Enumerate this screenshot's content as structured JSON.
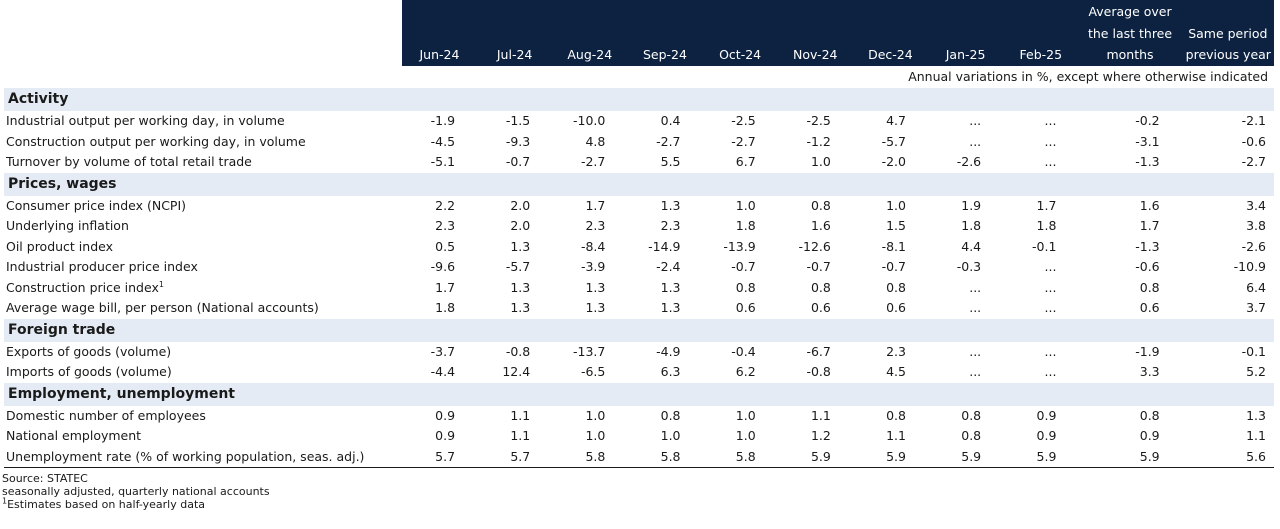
{
  "header": {
    "months": [
      "Jun-24",
      "Jul-24",
      "Aug-24",
      "Sep-24",
      "Oct-24",
      "Nov-24",
      "Dec-24",
      "Jan-25",
      "Feb-25"
    ],
    "avg_line1": "Average over",
    "avg_line2": "the last three",
    "avg_line3": "months",
    "same_line2": "Same period",
    "same_line3": "previous year"
  },
  "note": "Annual variations in %, except where otherwise indicated",
  "sections": [
    {
      "title": "Activity",
      "rows": [
        {
          "label": "Industrial output per working day, in volume",
          "values": [
            "-1.9",
            "-1.5",
            "-10.0",
            "0.4",
            "-2.5",
            "-2.5",
            "4.7",
            "...",
            "...",
            "-0.2",
            "-2.1"
          ]
        },
        {
          "label": "Construction output per working day, in volume",
          "values": [
            "-4.5",
            "-9.3",
            "4.8",
            "-2.7",
            "-2.7",
            "-1.2",
            "-5.7",
            "...",
            "...",
            "-3.1",
            "-0.6"
          ]
        },
        {
          "label": "Turnover by volume of total retail trade",
          "values": [
            "-5.1",
            "-0.7",
            "-2.7",
            "5.5",
            "6.7",
            "1.0",
            "-2.0",
            "-2.6",
            "...",
            "-1.3",
            "-2.7"
          ]
        }
      ]
    },
    {
      "title": "Prices, wages",
      "rows": [
        {
          "label": "Consumer price index (NCPI)",
          "values": [
            "2.2",
            "2.0",
            "1.7",
            "1.3",
            "1.0",
            "0.8",
            "1.0",
            "1.9",
            "1.7",
            "1.6",
            "3.4"
          ]
        },
        {
          "label": "Underlying inflation",
          "values": [
            "2.3",
            "2.0",
            "2.3",
            "2.3",
            "1.8",
            "1.6",
            "1.5",
            "1.8",
            "1.8",
            "1.7",
            "3.8"
          ]
        },
        {
          "label": "Oil product index",
          "values": [
            "0.5",
            "1.3",
            "-8.4",
            "-14.9",
            "-13.9",
            "-12.6",
            "-8.1",
            "4.4",
            "-0.1",
            "-1.3",
            "-2.6"
          ]
        },
        {
          "label": "Industrial producer price index",
          "values": [
            "-9.6",
            "-5.7",
            "-3.9",
            "-2.4",
            "-0.7",
            "-0.7",
            "-0.7",
            "-0.3",
            "...",
            "-0.6",
            "-10.9"
          ]
        },
        {
          "label": "Construction price index",
          "sup": "1",
          "values": [
            "1.7",
            "1.3",
            "1.3",
            "1.3",
            "0.8",
            "0.8",
            "0.8",
            "...",
            "...",
            "0.8",
            "6.4"
          ]
        },
        {
          "label": "Average wage bill, per person (National accounts)",
          "values": [
            "1.8",
            "1.3",
            "1.3",
            "1.3",
            "0.6",
            "0.6",
            "0.6",
            "...",
            "...",
            "0.6",
            "3.7"
          ]
        }
      ]
    },
    {
      "title": "Foreign trade",
      "rows": [
        {
          "label": "Exports of goods (volume)",
          "values": [
            "-3.7",
            "-0.8",
            "-13.7",
            "-4.9",
            "-0.4",
            "-6.7",
            "2.3",
            "...",
            "...",
            "-1.9",
            "-0.1"
          ]
        },
        {
          "label": "Imports of goods (volume)",
          "values": [
            "-4.4",
            "12.4",
            "-6.5",
            "6.3",
            "6.2",
            "-0.8",
            "4.5",
            "...",
            "...",
            "3.3",
            "5.2"
          ]
        }
      ]
    },
    {
      "title": "Employment, unemployment",
      "rows": [
        {
          "label": "Domestic number of employees",
          "values": [
            "0.9",
            "1.1",
            "1.0",
            "0.8",
            "1.0",
            "1.1",
            "0.8",
            "0.8",
            "0.9",
            "0.8",
            "1.3"
          ]
        },
        {
          "label": "National employment",
          "values": [
            "0.9",
            "1.1",
            "1.0",
            "1.0",
            "1.0",
            "1.2",
            "1.1",
            "0.8",
            "0.9",
            "0.9",
            "1.1"
          ]
        },
        {
          "label": "Unemployment rate (% of working population, seas. adj.)",
          "values": [
            "5.7",
            "5.7",
            "5.8",
            "5.8",
            "5.8",
            "5.9",
            "5.9",
            "5.9",
            "5.9",
            "5.9",
            "5.6"
          ]
        }
      ]
    }
  ],
  "footnotes": {
    "source": "Source: STATEC",
    "line2": "seasonally adjusted, quarterly national accounts",
    "sup": "1",
    "line3": "Estimates based on half-yearly data"
  }
}
